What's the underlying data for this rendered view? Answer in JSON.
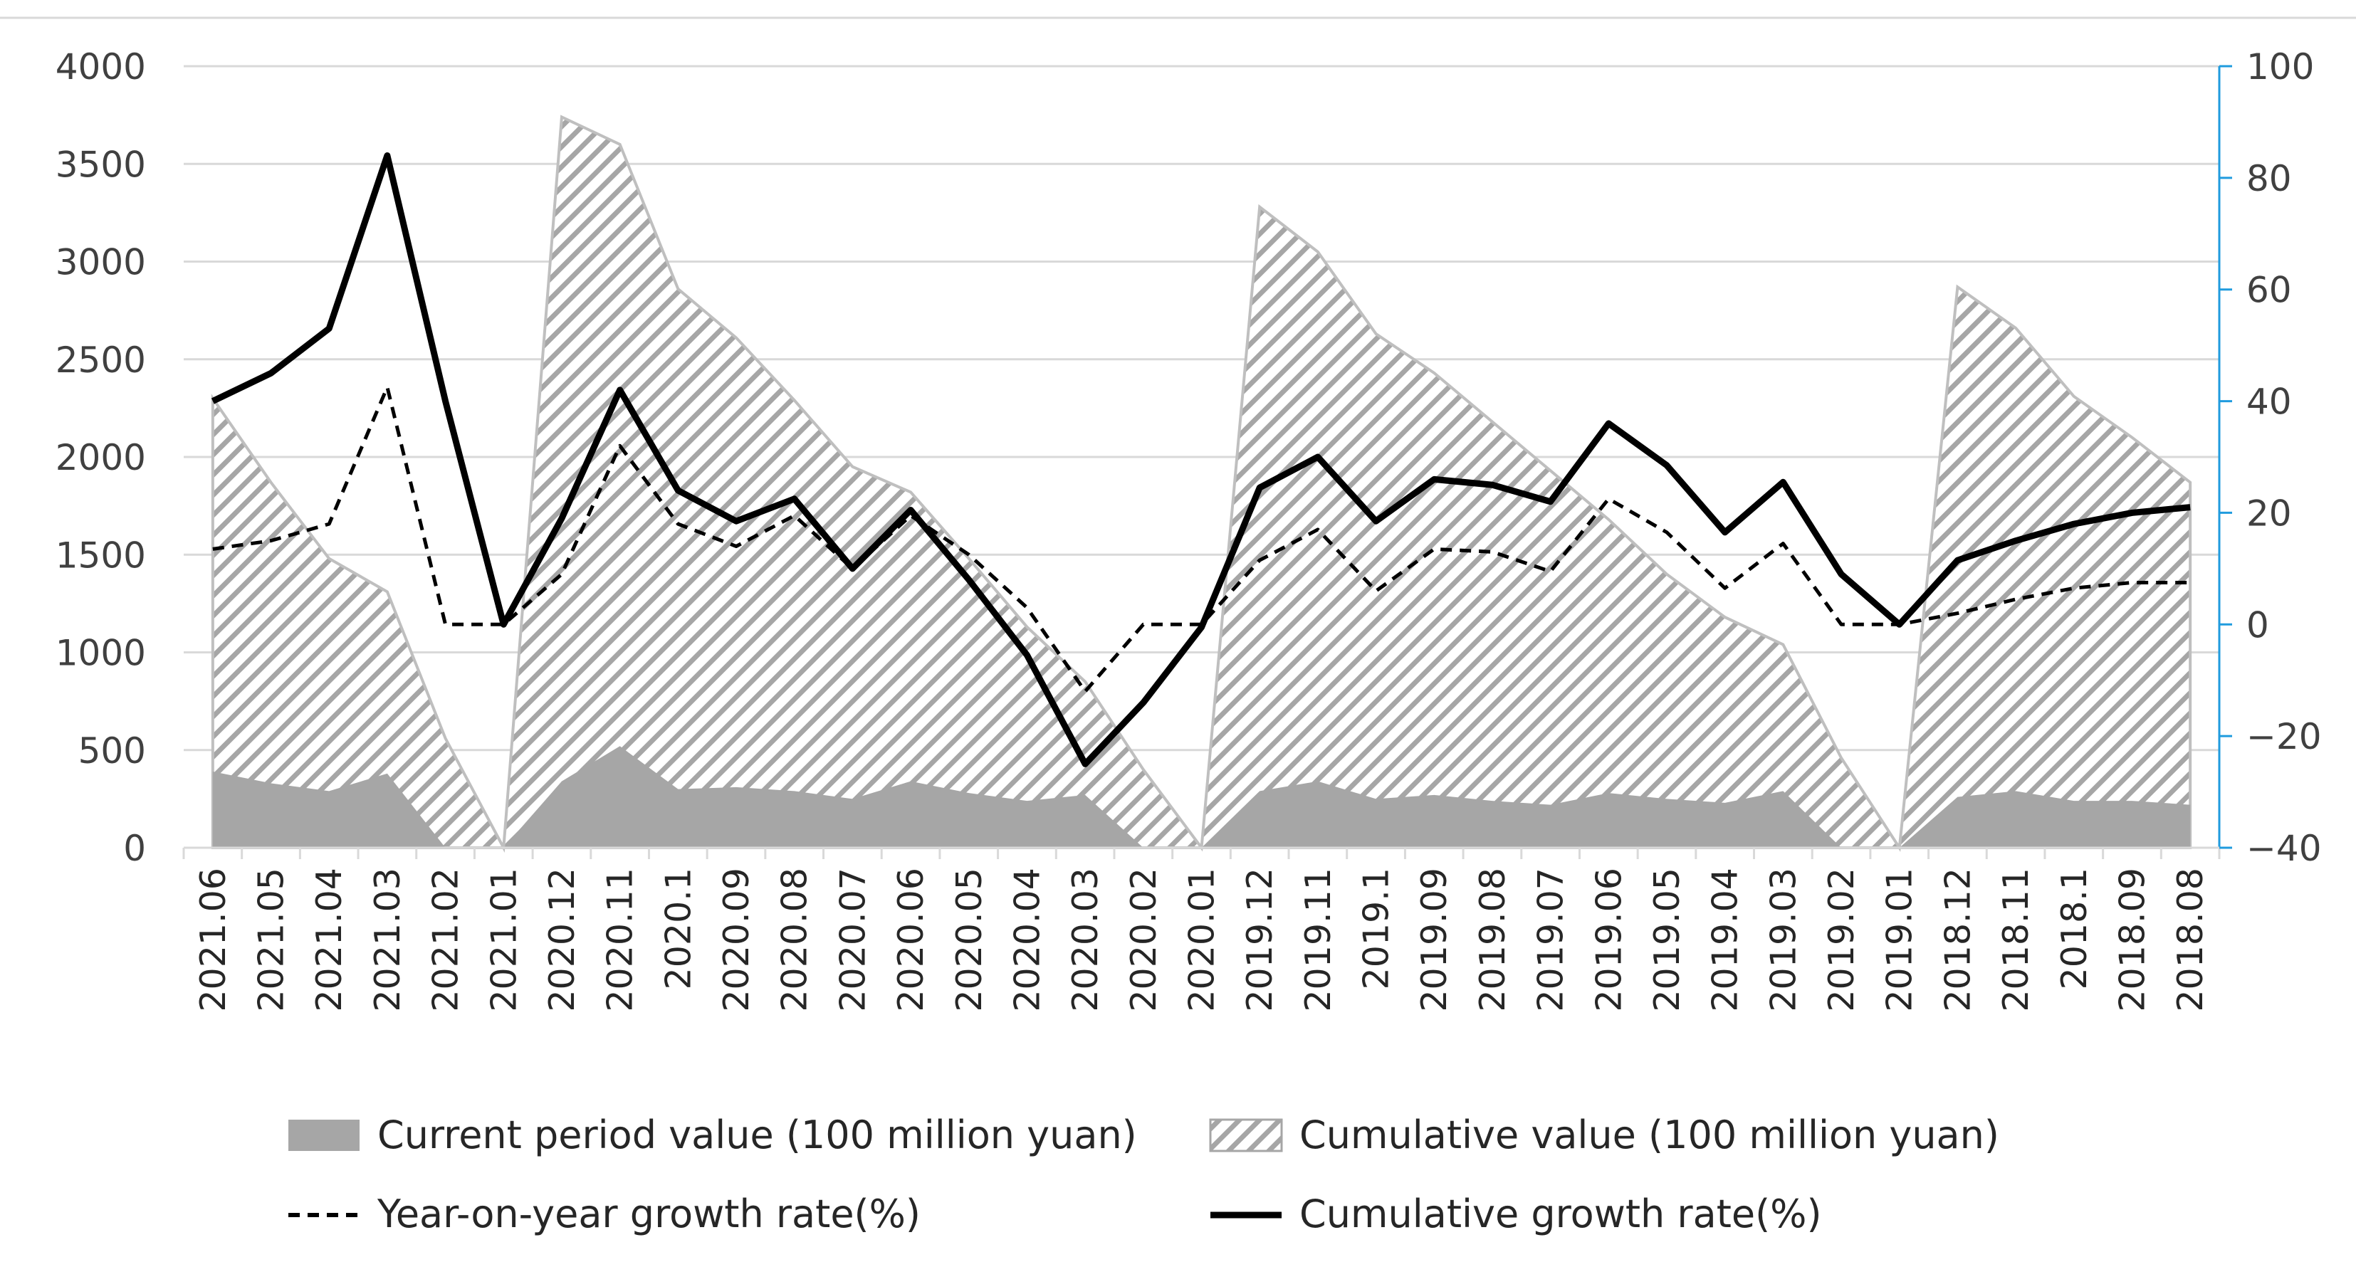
{
  "colors": {
    "current_fill": "#a6a6a6",
    "cumulative_hatch": "#a6a6a6",
    "cumulative_edge": "#bfbfbf",
    "yoy_line": "#000000",
    "cum_growth_line": "#000000",
    "grid": "#d9d9d9",
    "right_axis": "#1f9bde"
  },
  "chart_data": {
    "type": "area",
    "categories": [
      "2021.06",
      "2021.05",
      "2021.04",
      "2021.03",
      "2021.02",
      "2021.01",
      "2020.12",
      "2020.11",
      "2020.1",
      "2020.09",
      "2020.08",
      "2020.07",
      "2020.06",
      "2020.05",
      "2020.04",
      "2020.03",
      "2020.02",
      "2020.01",
      "2019.12",
      "2019.11",
      "2019.1",
      "2019.09",
      "2019.08",
      "2019.07",
      "2019.06",
      "2019.05",
      "2019.04",
      "2019.03",
      "2019.02",
      "2019.01",
      "2018.12",
      "2018.11",
      "2018.1",
      "2018.09",
      "2018.08"
    ],
    "left_axis": {
      "min": 0,
      "max": 4000,
      "step": 500,
      "ticks": [
        "0",
        "500",
        "1000",
        "1500",
        "2000",
        "2500",
        "3000",
        "3500",
        "4000"
      ]
    },
    "right_axis": {
      "min": -40,
      "max": 100,
      "step": 20,
      "ticks": [
        "−40",
        "−20",
        "0",
        "20",
        "40",
        "60",
        "80",
        "100"
      ]
    },
    "series": [
      {
        "name": "Current period value (100 million yuan)",
        "kind": "area-solid",
        "axis": "left",
        "values": [
          390,
          330,
          290,
          380,
          0,
          0,
          340,
          520,
          300,
          310,
          290,
          250,
          340,
          280,
          240,
          270,
          0,
          0,
          290,
          340,
          250,
          270,
          240,
          220,
          280,
          250,
          230,
          290,
          0,
          0,
          260,
          290,
          240,
          240,
          220
        ]
      },
      {
        "name": "Cumulative value (100 million yuan)",
        "kind": "area-hatch",
        "axis": "left",
        "values": [
          2300,
          1870,
          1480,
          1310,
          560,
          0,
          3740,
          3600,
          2860,
          2610,
          2290,
          1950,
          1820,
          1480,
          1130,
          850,
          400,
          0,
          3280,
          3050,
          2630,
          2430,
          2180,
          1930,
          1680,
          1400,
          1180,
          1040,
          460,
          0,
          2870,
          2660,
          2310,
          2100,
          1870
        ]
      },
      {
        "name": "Year-on-year growth rate(%)",
        "kind": "line-dashed",
        "axis": "right",
        "values": [
          13.5,
          15,
          18,
          42.5,
          0,
          0,
          9,
          32,
          18,
          14,
          19.5,
          10,
          19.5,
          12.5,
          3,
          -12,
          0,
          0,
          11.5,
          17,
          6,
          13.5,
          13,
          9.5,
          22.5,
          16.5,
          6.5,
          14.5,
          0,
          0,
          2,
          4.5,
          6.5,
          7.5,
          7.5
        ]
      },
      {
        "name": "Cumulative growth rate(%)",
        "kind": "line-solid",
        "axis": "right",
        "values": [
          40,
          45,
          53,
          84,
          40,
          0,
          19,
          42,
          24,
          18.5,
          22.5,
          10,
          20.5,
          8,
          -5.5,
          -25,
          -14,
          -0.5,
          24.5,
          30,
          18.5,
          26,
          25,
          22,
          36,
          28.5,
          16.5,
          25.5,
          9,
          0,
          11.5,
          15,
          18,
          20,
          21
        ]
      }
    ],
    "legend": [
      "Current period value (100 million yuan)",
      "Cumulative value (100 million yuan)",
      "Year-on-year growth rate(%)",
      "Cumulative growth rate(%)"
    ],
    "title": "",
    "xlabel": "",
    "ylabel": "",
    "grid": true,
    "legend_position": "bottom"
  }
}
